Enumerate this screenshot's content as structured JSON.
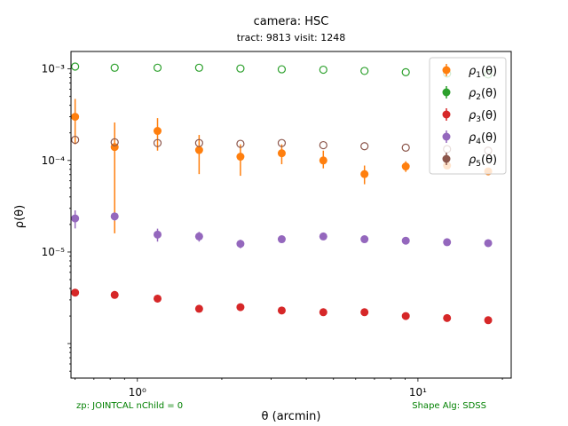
{
  "chart_data": {
    "type": "scatter",
    "title": "camera: HSC",
    "subtitle": "tract: 9813 visit: 1248",
    "xlabel": "θ (arcmin)",
    "ylabel": "ρ(θ)",
    "xscale": "log",
    "yscale": "log",
    "xlim": [
      0.58,
      21.5
    ],
    "ylim": [
      4.2e-07,
      0.00155
    ],
    "x_ticks": [
      {
        "value": 1,
        "label": "10⁰"
      },
      {
        "value": 10,
        "label": "10¹"
      }
    ],
    "y_ticks": [
      {
        "value": 1e-05,
        "label": "10⁻⁵"
      },
      {
        "value": 0.0001,
        "label": "10⁻⁴"
      },
      {
        "value": 0.001,
        "label": "10⁻³"
      }
    ],
    "grid": false,
    "legend_position": "top-right",
    "annotations": [
      {
        "text": "zp: JOINTCAL nChild = 0",
        "color": "#008000",
        "position": "bottom-left"
      },
      {
        "text": "Shape Alg: SDSS",
        "color": "#008000",
        "position": "bottom-right"
      }
    ],
    "x": [
      0.6,
      0.83,
      1.18,
      1.66,
      2.33,
      3.27,
      4.6,
      6.45,
      9.05,
      12.7,
      17.8
    ],
    "series": [
      {
        "name": "ρ1(θ)",
        "label_base": "ρ",
        "label_sub": "1",
        "label_suffix": "(θ)",
        "color": "#ff7f0e",
        "filled": true,
        "values": [
          0.0003,
          0.00014,
          0.00021,
          0.00013,
          0.00011,
          0.00012,
          0.0001,
          7.1e-05,
          8.6e-05,
          8.8e-05,
          7.6e-05
        ],
        "err_low": [
          0.00015,
          0.000124,
          8.2e-05,
          5.9e-05,
          4.2e-05,
          2.9e-05,
          1.8e-05,
          1.6e-05,
          1.1e-05,
          6e-06,
          4e-06
        ],
        "err_high": [
          0.00017,
          0.00012,
          8e-05,
          6e-05,
          4e-05,
          3e-05,
          2.8e-05,
          1.7e-05,
          1.2e-05,
          6e-06,
          5e-06
        ]
      },
      {
        "name": "ρ2(θ)",
        "label_base": "ρ",
        "label_sub": "2",
        "label_suffix": "(θ)",
        "color": "#2ca02c",
        "filled": false,
        "values": [
          0.00106,
          0.00103,
          0.00103,
          0.00103,
          0.00101,
          0.00099,
          0.00098,
          0.00095,
          0.00092,
          0.00089,
          0.00087
        ]
      },
      {
        "name": "ρ3(θ)",
        "label_base": "ρ",
        "label_sub": "3",
        "label_suffix": "(θ)",
        "color": "#d62728",
        "filled": true,
        "values": [
          3.6e-06,
          3.4e-06,
          3.1e-06,
          2.4e-06,
          2.5e-06,
          2.3e-06,
          2.2e-06,
          2.2e-06,
          2e-06,
          1.9e-06,
          1.8e-06
        ]
      },
      {
        "name": "ρ4(θ)",
        "label_base": "ρ",
        "label_sub": "4",
        "label_suffix": "(θ)",
        "color": "#9467bd",
        "filled": true,
        "values": [
          2.33e-05,
          2.45e-05,
          1.55e-05,
          1.48e-05,
          1.23e-05,
          1.38e-05,
          1.48e-05,
          1.38e-05,
          1.33e-05,
          1.28e-05,
          1.25e-05
        ],
        "err_low": [
          5.2e-06,
          2.5e-06,
          2.5e-06,
          1.8e-06,
          1.3e-06,
          1e-06,
          8e-07,
          7e-07,
          6e-07,
          5e-07,
          5e-07
        ],
        "err_high": [
          5.2e-06,
          2.5e-06,
          2.5e-06,
          1.8e-06,
          1.3e-06,
          1e-06,
          8e-07,
          7e-07,
          6e-07,
          5e-07,
          5e-07
        ]
      },
      {
        "name": "ρ5(θ)",
        "label_base": "ρ",
        "label_sub": "5",
        "label_suffix": "(θ)",
        "color": "#8c564b",
        "filled": false,
        "values": [
          0.000168,
          0.000158,
          0.000155,
          0.000155,
          0.000152,
          0.000155,
          0.000147,
          0.000143,
          0.000138,
          0.000133,
          0.000128
        ]
      }
    ]
  }
}
